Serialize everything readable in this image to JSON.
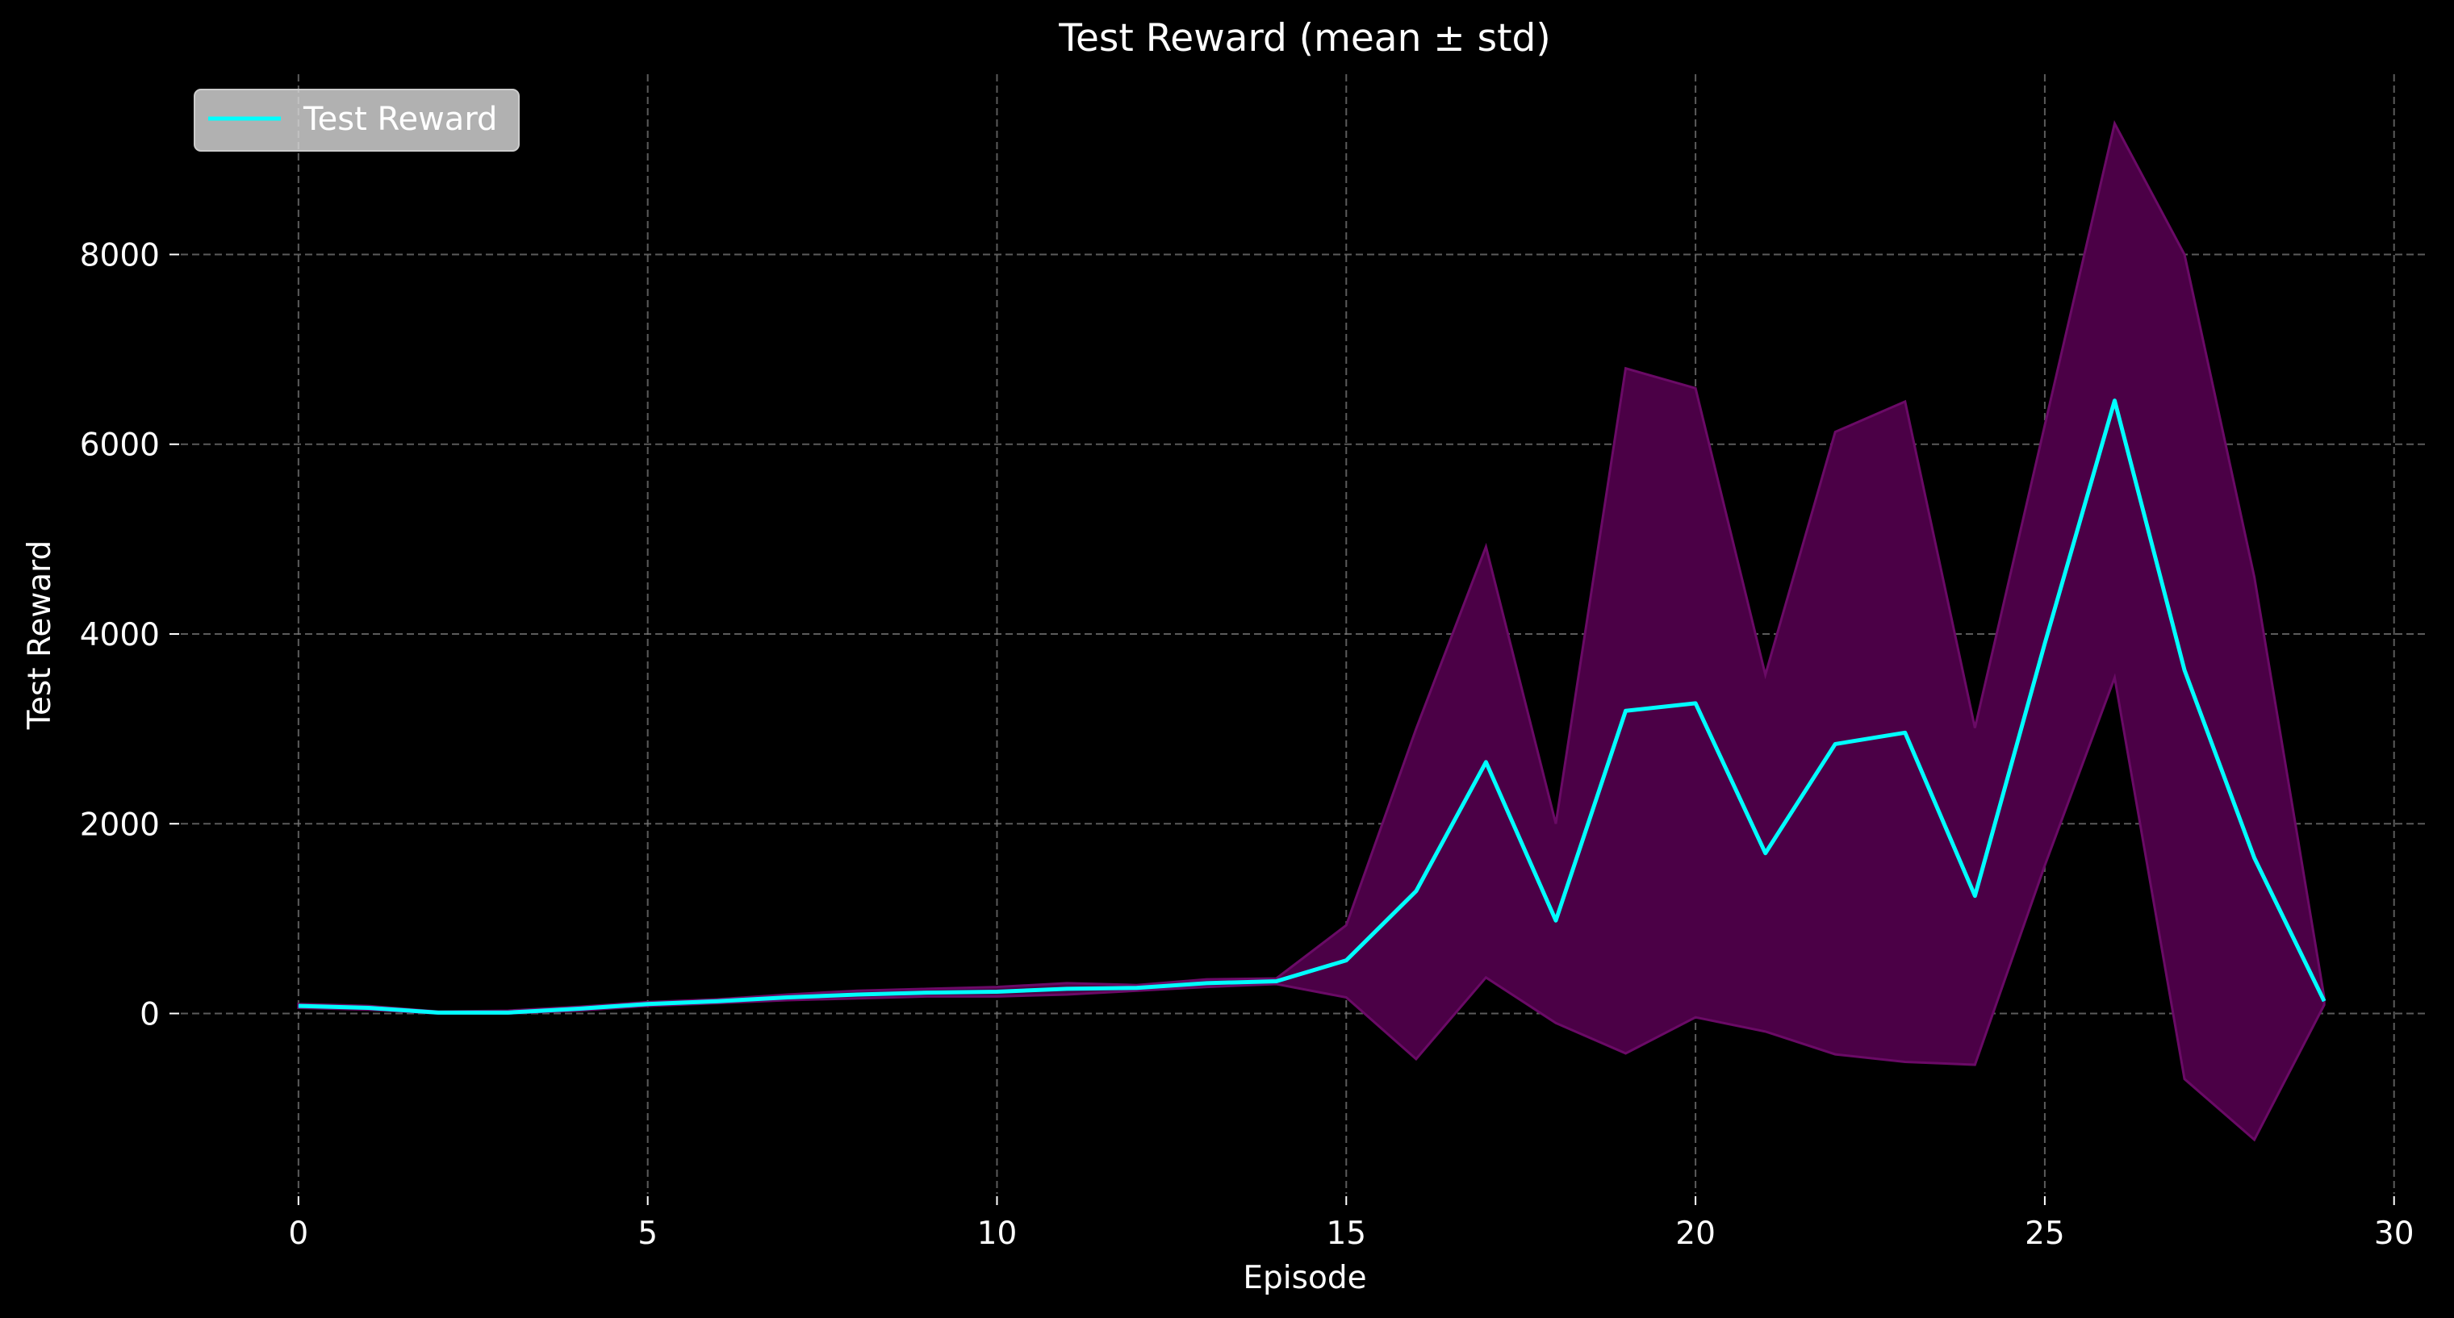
{
  "chart_data": {
    "type": "line",
    "title": "Test Reward (mean ± std)",
    "xlabel": "Episode",
    "ylabel": "Test Reward",
    "xlim": [
      -1.5,
      30.5
    ],
    "ylim": [
      -1900,
      9900
    ],
    "xticks": [
      0,
      5,
      10,
      15,
      20,
      25,
      30
    ],
    "yticks": [
      0,
      2000,
      4000,
      6000,
      8000
    ],
    "grid": true,
    "legend_position": "upper-left",
    "series": [
      {
        "name": "Test Reward",
        "color": "#00ffff",
        "x": [
          0,
          1,
          2,
          3,
          4,
          5,
          6,
          7,
          8,
          9,
          10,
          11,
          12,
          13,
          14,
          15,
          16,
          17,
          18,
          19,
          20,
          21,
          22,
          23,
          24,
          25,
          26,
          27,
          28,
          29
        ],
        "mean": [
          80,
          60,
          10,
          10,
          50,
          100,
          130,
          170,
          200,
          220,
          230,
          260,
          270,
          320,
          340,
          560,
          1290,
          2650,
          980,
          3190,
          3270,
          1690,
          2840,
          2960,
          1240,
          3900,
          6460,
          3620,
          1640,
          130
        ],
        "upper": [
          100,
          80,
          20,
          30,
          70,
          120,
          150,
          200,
          240,
          260,
          280,
          320,
          300,
          360,
          370,
          930,
          3000,
          4920,
          2000,
          6800,
          6590,
          3570,
          6130,
          6450,
          3010,
          6200,
          9380,
          8000,
          4600,
          170
        ],
        "lower": [
          60,
          40,
          0,
          0,
          30,
          80,
          110,
          140,
          160,
          180,
          180,
          200,
          240,
          280,
          310,
          170,
          -480,
          380,
          -100,
          -420,
          -40,
          -190,
          -430,
          -510,
          -540,
          1560,
          3540,
          -690,
          -1330,
          90
        ],
        "band_color": "#4b0046",
        "band_edge_color": "#6a0a66"
      }
    ]
  }
}
